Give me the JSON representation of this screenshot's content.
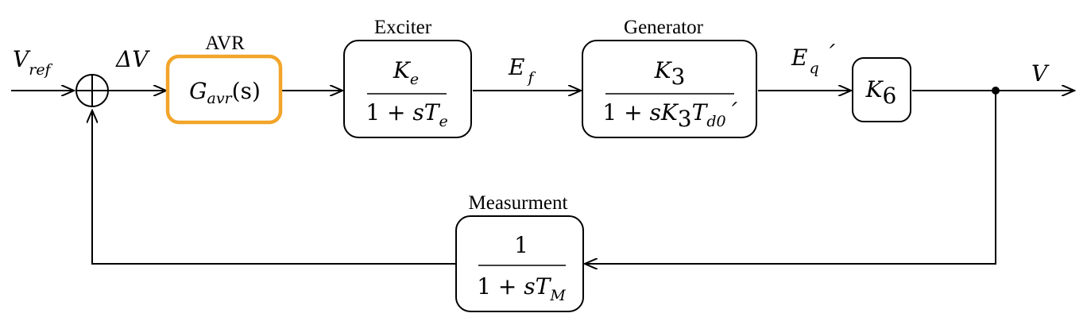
{
  "diagram": {
    "input_signal": {
      "base": "V",
      "sub": "ref"
    },
    "error_signal": "ΔV",
    "output_signal": "V",
    "highlight_color": "#f2a52a",
    "blocks": {
      "avr": {
        "title": "AVR",
        "tf": {
          "base": "G",
          "sub": "avr",
          "arg": "(s)"
        }
      },
      "exciter": {
        "title": "Exciter",
        "num": {
          "base": "K",
          "sub": "e"
        },
        "den": {
          "prefix": "1 + ",
          "var": "sT",
          "sub": "e"
        }
      },
      "generator": {
        "title": "Generator",
        "num": {
          "base": "K",
          "sub": "3"
        },
        "den": {
          "prefix": "1 + ",
          "var1": "sK",
          "sub1": "3",
          "var2": "T",
          "sub2": "d0",
          "suffix": "´"
        }
      },
      "k6": {
        "tf": {
          "base": "K",
          "sub": "6"
        }
      },
      "measurement": {
        "title": "Measurment",
        "num": "1",
        "den": {
          "prefix": "1 + ",
          "var": "sT",
          "sub": "M"
        }
      }
    },
    "signals": {
      "ef": {
        "base": "E",
        "sub": "f"
      },
      "eq": {
        "base": "E",
        "sub": "q",
        "suffix": "´"
      }
    }
  }
}
